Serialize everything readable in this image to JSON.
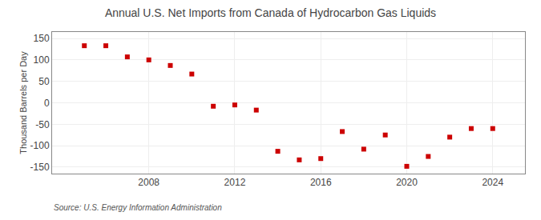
{
  "chart_data": {
    "type": "scatter",
    "title": "Annual U.S. Net Imports from Canada of Hydrocarbon Gas Liquids",
    "ylabel": "Thousand Barrels per Day",
    "annotations": [
      "Source: U.S. Energy Information Administration"
    ],
    "x": [
      2005,
      2006,
      2007,
      2008,
      2009,
      2010,
      2011,
      2012,
      2013,
      2014,
      2015,
      2016,
      2017,
      2018,
      2019,
      2020,
      2021,
      2022,
      2023,
      2024
    ],
    "values": [
      133,
      133,
      107,
      100,
      87,
      67,
      -8,
      -5,
      -17,
      -113,
      -133,
      -130,
      -67,
      -108,
      -75,
      -148,
      -125,
      -80,
      -60,
      -60
    ],
    "color": "#cc0000",
    "marker": "square",
    "xlim": [
      2003.5,
      2025.5
    ],
    "xticks": [
      2008,
      2012,
      2016,
      2020,
      2024
    ],
    "ylim": [
      -165,
      165
    ],
    "yticks": [
      -150,
      -100,
      -50,
      0,
      50,
      100,
      150
    ],
    "grid": true
  }
}
